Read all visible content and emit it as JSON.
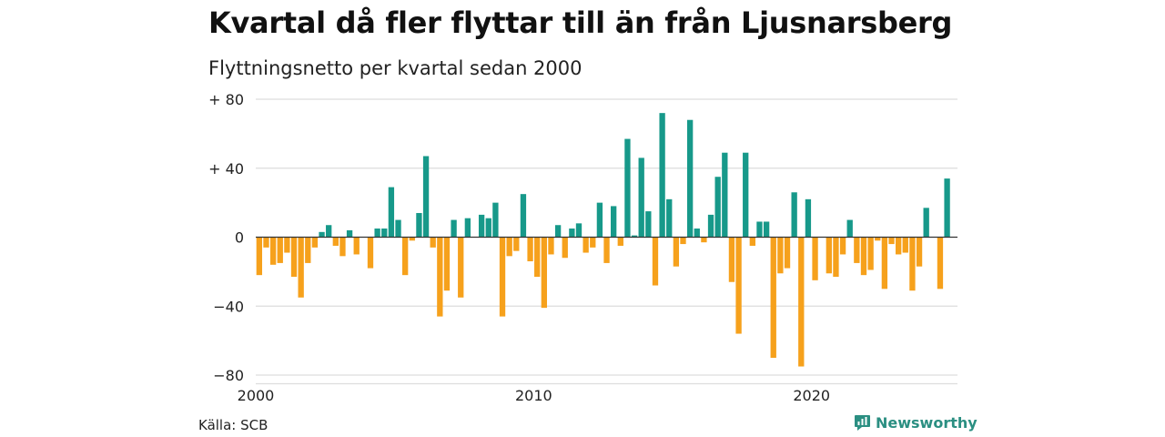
{
  "title": "Kvartal då fler flyttar till än från Ljusnarsberg",
  "subtitle": "Flyttningsnetto per kvartal sedan 2000",
  "source": "Källa: SCB",
  "brand": {
    "name": "Newsworthy",
    "icon": "newsworthy-logo-icon",
    "color": "#2b8f82"
  },
  "colors": {
    "positive": "#17998a",
    "negative": "#f6a11c",
    "grid": "#dddddd",
    "zero_line": "#333333"
  },
  "chart_data": {
    "type": "bar",
    "title": "Kvartal då fler flyttar till än från Ljusnarsberg",
    "subtitle": "Flyttningsnetto per kvartal sedan 2000",
    "xlabel": "",
    "ylabel": "",
    "x_start": 2000,
    "x_step": 0.25,
    "xlim": [
      2000,
      2025.25
    ],
    "ylim": [
      -85,
      80
    ],
    "yticks": [
      80,
      40,
      0,
      -40,
      -80
    ],
    "ytick_labels": [
      "+ 80",
      "+ 40",
      "0",
      "−40",
      "−80"
    ],
    "xticks": [
      2000,
      2010,
      2020
    ],
    "xtick_labels": [
      "2000",
      "2010",
      "2020"
    ],
    "grid": true,
    "legend": "none",
    "values": [
      -22,
      -6,
      -16,
      -15,
      -9,
      -23,
      -35,
      -15,
      -6,
      3,
      7,
      -5,
      -11,
      4,
      -10,
      0,
      -18,
      5,
      5,
      29,
      10,
      -22,
      -2,
      14,
      47,
      -6,
      -46,
      -31,
      10,
      -35,
      11,
      0,
      13,
      11,
      20,
      -46,
      -11,
      -8,
      25,
      -14,
      -23,
      -41,
      -10,
      7,
      -12,
      5,
      8,
      -9,
      -6,
      20,
      -15,
      18,
      -5,
      57,
      1,
      46,
      15,
      -28,
      72,
      22,
      -17,
      -4,
      68,
      5,
      -3,
      13,
      35,
      49,
      -26,
      -56,
      49,
      -5,
      9,
      9,
      -70,
      -21,
      -18,
      26,
      -75,
      22,
      -25,
      0,
      -21,
      -23,
      -10,
      10,
      -15,
      -22,
      -19,
      -2,
      -30,
      -4,
      -10,
      -9,
      -31,
      -17,
      17,
      0,
      -30,
      34
    ]
  }
}
